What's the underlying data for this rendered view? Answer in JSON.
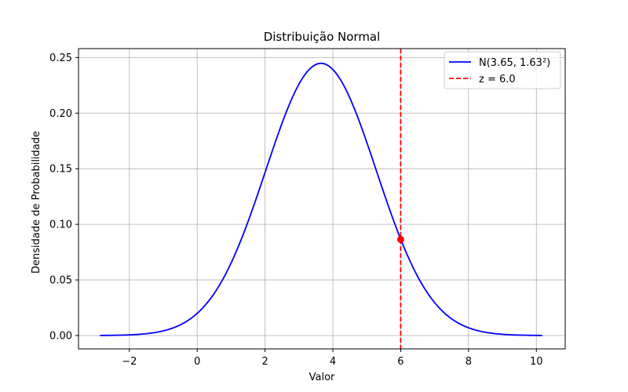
{
  "chart_data": {
    "type": "line",
    "title": "Distribuição Normal",
    "xlabel": "Valor",
    "ylabel": "Densidade de Probabilidade",
    "xlim": [
      -3.5,
      10.85
    ],
    "ylim": [
      -0.012,
      0.258
    ],
    "x_ticks": [
      -2,
      0,
      2,
      4,
      6,
      8,
      10
    ],
    "x_tick_labels": [
      "−2",
      "0",
      "2",
      "4",
      "6",
      "8",
      "10"
    ],
    "y_ticks": [
      0.0,
      0.05,
      0.1,
      0.15,
      0.2,
      0.25
    ],
    "y_tick_labels": [
      "0.00",
      "0.05",
      "0.10",
      "0.15",
      "0.20",
      "0.25"
    ],
    "grid": true,
    "legend_position": "top-right",
    "series": [
      {
        "name": "N(3.65, 1.63²)",
        "kind": "normal-pdf",
        "mean": 3.65,
        "std": 1.63,
        "x_range": [
          -2.87,
          10.17
        ],
        "color": "#0000ff",
        "style": "solid"
      },
      {
        "name": "z = 6.0",
        "kind": "vertical-line",
        "x": 6.0,
        "color": "#ff0000",
        "style": "dashed"
      }
    ],
    "marker": {
      "x": 6.0,
      "y": 0.0864,
      "color": "#ff0000"
    }
  }
}
